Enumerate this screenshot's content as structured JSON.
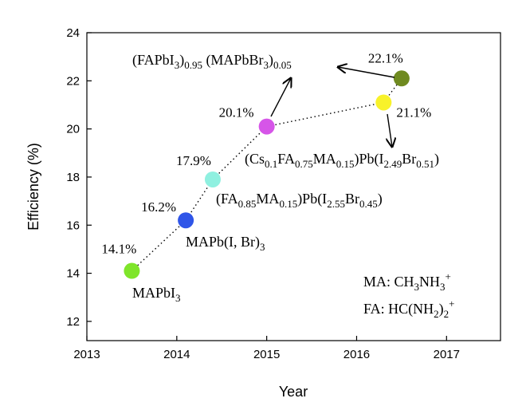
{
  "chart_data": {
    "type": "scatter",
    "title": "",
    "xlabel": "Year",
    "ylabel": "Efficiency (%)",
    "xlim": [
      2013,
      2017.6
    ],
    "ylim": [
      11.2,
      24
    ],
    "xticks": [
      2013,
      2014,
      2015,
      2016,
      2017
    ],
    "yticks": [
      12,
      14,
      16,
      18,
      20,
      22,
      24
    ],
    "grid": false,
    "connector": "dotted",
    "points": [
      {
        "x": 2013.5,
        "y": 14.1,
        "label": "14.1%",
        "color": "#7fe52a",
        "composition": "MAPbI3"
      },
      {
        "x": 2014.1,
        "y": 16.2,
        "label": "16.2%",
        "color": "#2f55e8",
        "composition": "MAPb(I, Br)3"
      },
      {
        "x": 2014.4,
        "y": 17.9,
        "label": "17.9%",
        "color": "#8ff0e0",
        "composition": "(FA0.85MA0.15)Pb(I2.55Br0.45)"
      },
      {
        "x": 2015.0,
        "y": 20.1,
        "label": "20.1%",
        "color": "#d655e8",
        "composition": "(FAPbI3)0.95(MAPbBr3)0.05"
      },
      {
        "x": 2016.3,
        "y": 21.1,
        "label": "21.1%",
        "color": "#f8f22a",
        "composition": "(Cs0.1FA0.75MA0.15)Pb(I2.49Br0.51)"
      },
      {
        "x": 2016.5,
        "y": 22.1,
        "label": "22.1%",
        "color": "#6f8a20",
        "composition": ""
      }
    ],
    "notes": [
      "MA: CH3NH3+",
      "FA: HC(NH2)2+"
    ]
  }
}
